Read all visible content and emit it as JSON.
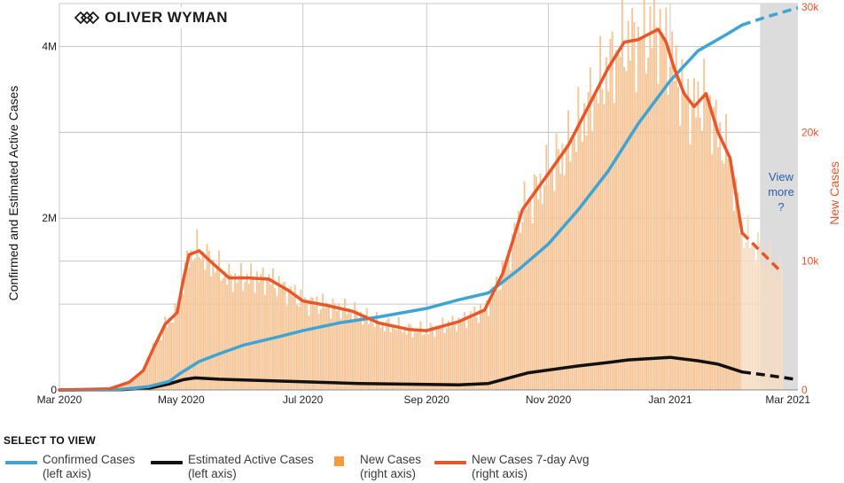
{
  "logo": {
    "text": "OLIVER WYMAN",
    "icon": "oliver-wyman-logo-icon"
  },
  "view_more": {
    "line1": "View",
    "line2": "more",
    "line3": "?"
  },
  "legend": {
    "title": "SELECT TO VIEW",
    "items": [
      {
        "line1": "Confirmed Cases",
        "line2": "(left axis)",
        "color": "#3fa4d4",
        "kind": "line"
      },
      {
        "line1": "Estimated Active Cases",
        "line2": "(left axis)",
        "color": "#111111",
        "kind": "line"
      },
      {
        "line1": "New Cases",
        "line2": "(right axis)",
        "color": "#f39b3d",
        "kind": "square"
      },
      {
        "line1": "New Cases 7-day Avg",
        "line2": "(right axis)",
        "color": "#e8562a",
        "kind": "line"
      }
    ]
  },
  "colors": {
    "confirmed": "#3fa4d4",
    "active": "#111111",
    "bars": "#f5c597",
    "avg": "#e8562a",
    "grid": "#c9c9c9",
    "shade": "#dcdcdc"
  },
  "chart_data": {
    "type": "line",
    "title": "",
    "ylabel": "Confirmed and Estimated Active Cases",
    "y2label": "New Cases",
    "xlim": [
      0,
      370
    ],
    "ylim": [
      0,
      4500000
    ],
    "y2lim": [
      0,
      30000
    ],
    "projection_start_day": 342,
    "shaded_from_day": 351,
    "x_ticks": [
      {
        "day": 0,
        "label": "Mar 2020"
      },
      {
        "day": 61,
        "label": "May 2020"
      },
      {
        "day": 122,
        "label": "Jul 2020"
      },
      {
        "day": 184,
        "label": "Sep 2020"
      },
      {
        "day": 245,
        "label": "Nov 2020"
      },
      {
        "day": 306,
        "label": "Jan 2021"
      },
      {
        "day": 365,
        "label": "Mar 2021"
      }
    ],
    "y_ticks": [
      {
        "value": 0,
        "label": "0"
      },
      {
        "value": 2000000,
        "label": "2M"
      },
      {
        "value": 4000000,
        "label": "4M"
      }
    ],
    "y_minor_gridlines": [
      1000000,
      3000000
    ],
    "y2_ticks": [
      {
        "value": 0,
        "label": "0"
      },
      {
        "value": 10000,
        "label": "10k"
      },
      {
        "value": 20000,
        "label": "20k"
      },
      {
        "value": 30000,
        "label": "30k"
      }
    ],
    "series": [
      {
        "name": "Confirmed Cases (left axis)",
        "axis": "left",
        "points": [
          [
            0,
            0
          ],
          [
            30,
            5000
          ],
          [
            45,
            40000
          ],
          [
            55,
            100000
          ],
          [
            61,
            200000
          ],
          [
            70,
            330000
          ],
          [
            80,
            420000
          ],
          [
            92,
            520000
          ],
          [
            110,
            620000
          ],
          [
            122,
            690000
          ],
          [
            140,
            780000
          ],
          [
            160,
            850000
          ],
          [
            184,
            950000
          ],
          [
            200,
            1050000
          ],
          [
            215,
            1130000
          ],
          [
            230,
            1400000
          ],
          [
            245,
            1700000
          ],
          [
            260,
            2100000
          ],
          [
            275,
            2550000
          ],
          [
            290,
            3100000
          ],
          [
            306,
            3600000
          ],
          [
            320,
            3950000
          ],
          [
            335,
            4150000
          ],
          [
            342,
            4250000
          ],
          [
            355,
            4350000
          ],
          [
            370,
            4450000
          ]
        ]
      },
      {
        "name": "Estimated Active Cases (left axis)",
        "axis": "left",
        "points": [
          [
            0,
            0
          ],
          [
            30,
            3000
          ],
          [
            45,
            20000
          ],
          [
            55,
            70000
          ],
          [
            62,
            120000
          ],
          [
            68,
            140000
          ],
          [
            80,
            125000
          ],
          [
            100,
            110000
          ],
          [
            122,
            95000
          ],
          [
            150,
            75000
          ],
          [
            184,
            65000
          ],
          [
            200,
            60000
          ],
          [
            215,
            75000
          ],
          [
            235,
            200000
          ],
          [
            260,
            280000
          ],
          [
            275,
            320000
          ],
          [
            285,
            350000
          ],
          [
            306,
            380000
          ],
          [
            320,
            340000
          ],
          [
            330,
            300000
          ],
          [
            342,
            210000
          ],
          [
            355,
            170000
          ],
          [
            370,
            120000
          ]
        ]
      },
      {
        "name": "New Cases 7-day Avg (right axis)",
        "axis": "right",
        "points": [
          [
            0,
            0
          ],
          [
            25,
            80
          ],
          [
            35,
            600
          ],
          [
            42,
            1500
          ],
          [
            47,
            3200
          ],
          [
            53,
            5100
          ],
          [
            59,
            6000
          ],
          [
            62,
            8500
          ],
          [
            65,
            10500
          ],
          [
            70,
            10800
          ],
          [
            77,
            9800
          ],
          [
            85,
            8700
          ],
          [
            95,
            8700
          ],
          [
            105,
            8600
          ],
          [
            115,
            7700
          ],
          [
            122,
            6900
          ],
          [
            133,
            6600
          ],
          [
            147,
            6100
          ],
          [
            160,
            5200
          ],
          [
            175,
            4700
          ],
          [
            184,
            4600
          ],
          [
            200,
            5300
          ],
          [
            213,
            6200
          ],
          [
            222,
            9000
          ],
          [
            232,
            14000
          ],
          [
            245,
            16800
          ],
          [
            255,
            19000
          ],
          [
            265,
            22000
          ],
          [
            275,
            25000
          ],
          [
            283,
            27000
          ],
          [
            290,
            27200
          ],
          [
            300,
            28000
          ],
          [
            304,
            27000
          ],
          [
            308,
            25000
          ],
          [
            313,
            23000
          ],
          [
            318,
            22000
          ],
          [
            324,
            23000
          ],
          [
            330,
            20000
          ],
          [
            336,
            18000
          ],
          [
            342,
            12200
          ],
          [
            355,
            10200
          ],
          [
            362,
            9100
          ]
        ]
      },
      {
        "name": "New Cases (right axis)",
        "type": "bar",
        "axis": "right",
        "bar_width_days": 1,
        "note": "daily bars follow the 7-day average with day-to-day variation"
      }
    ]
  }
}
